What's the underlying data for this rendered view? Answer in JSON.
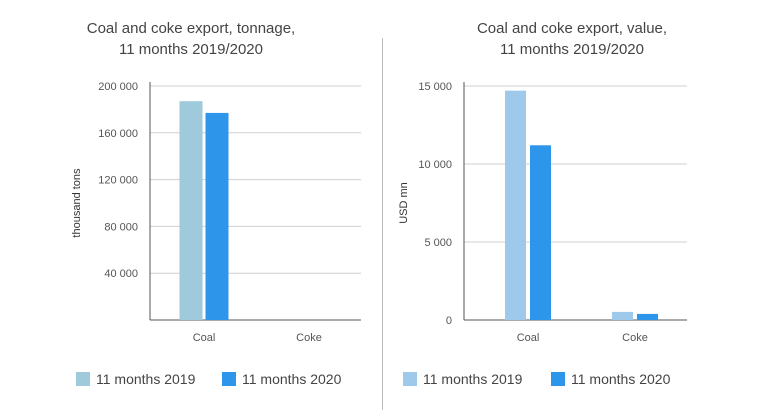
{
  "colors": {
    "series_2019_left": "#9ecadb",
    "series_2019_right": "#9fc9ea",
    "series_2020": "#2e96ea",
    "grid": "#d0d0d0",
    "axis": "#555555"
  },
  "chart_data": [
    {
      "type": "bar",
      "title": "Coal and coke export, tonnage,\n11 months 2019/2020",
      "xlabel": "",
      "ylabel": "thousand tons",
      "categories": [
        "Coal",
        "Coke"
      ],
      "series": [
        {
          "name": "11 months 2019",
          "values": [
            187000,
            0
          ]
        },
        {
          "name": "11 months 2020",
          "values": [
            177000,
            0
          ]
        }
      ],
      "ylim": [
        0,
        200000
      ],
      "yticks": [
        40000,
        80000,
        120000,
        160000,
        200000
      ],
      "ytick_labels": [
        "40 000",
        "80 000",
        "120 000",
        "160 000",
        "200 000"
      ],
      "grid": true,
      "legend": "bottom"
    },
    {
      "type": "bar",
      "title": "Coal and coke export, value,\n11 months 2019/2020",
      "xlabel": "",
      "ylabel": "USD mn",
      "categories": [
        "Coal",
        "Coke"
      ],
      "series": [
        {
          "name": "11 months 2019",
          "values": [
            14700,
            520
          ]
        },
        {
          "name": "11 months 2020",
          "values": [
            11200,
            390
          ]
        }
      ],
      "ylim": [
        0,
        15000
      ],
      "yticks": [
        0,
        5000,
        10000,
        15000
      ],
      "ytick_labels": [
        "0",
        "5 000",
        "10 000",
        "15 000"
      ],
      "grid": true,
      "legend": "bottom"
    }
  ]
}
